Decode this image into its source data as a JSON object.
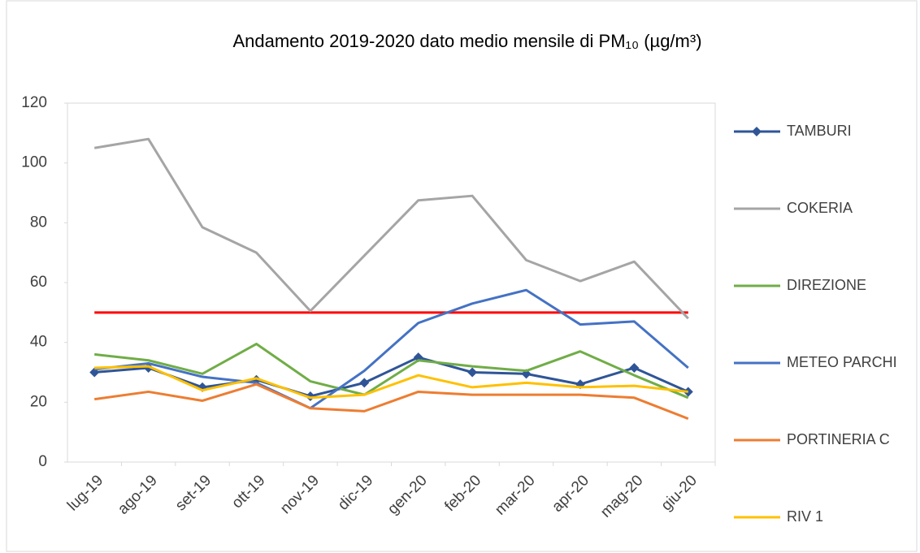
{
  "chart_data": {
    "type": "line",
    "title": "Andamento 2019-2020 dato medio mensile di PM₁₀  (µg/m³)",
    "categories": [
      "lug-19",
      "ago-19",
      "set-19",
      "ott-19",
      "nov-19",
      "dic-19",
      "gen-20",
      "feb-20",
      "mar-20",
      "apr-20",
      "mag-20",
      "giu-20"
    ],
    "series": [
      {
        "name": "TAMBURI",
        "color": "#2f5597",
        "marker": "diamond",
        "values": [
          30,
          31.5,
          25,
          27.5,
          22,
          26.5,
          35,
          30,
          29.5,
          26,
          31.5,
          23.5
        ]
      },
      {
        "name": "COKERIA",
        "color": "#a5a5a5",
        "values": [
          105,
          108,
          78.5,
          70,
          50.5,
          69,
          87.5,
          89,
          67.5,
          60.5,
          67,
          48
        ]
      },
      {
        "name": "DIREZIONE",
        "color": "#70ad47",
        "values": [
          36,
          34,
          29.5,
          39.5,
          27,
          22.5,
          34,
          32,
          30.5,
          37,
          29,
          21.5
        ]
      },
      {
        "name": "METEO PARCHI",
        "color": "#4472c4",
        "values": [
          31,
          33,
          28.5,
          26.5,
          18,
          30.5,
          46.5,
          53,
          57.5,
          46,
          47,
          31.5
        ]
      },
      {
        "name": "PORTINERIA C",
        "color": "#ed7d31",
        "values": [
          21,
          23.5,
          20.5,
          26,
          18,
          17,
          23.5,
          22.5,
          22.5,
          22.5,
          21.5,
          14.5
        ]
      },
      {
        "name": "RIV 1",
        "color": "#ffc000",
        "values": [
          31.5,
          32,
          24,
          28,
          21.5,
          22.5,
          29,
          25,
          26.5,
          25,
          25.5,
          23.5
        ]
      }
    ],
    "threshold": {
      "value": 50,
      "color": "#ff0000"
    },
    "ylim": [
      0,
      120
    ],
    "yticks": [
      0,
      20,
      40,
      60,
      80,
      100,
      120
    ],
    "legend": "right"
  }
}
